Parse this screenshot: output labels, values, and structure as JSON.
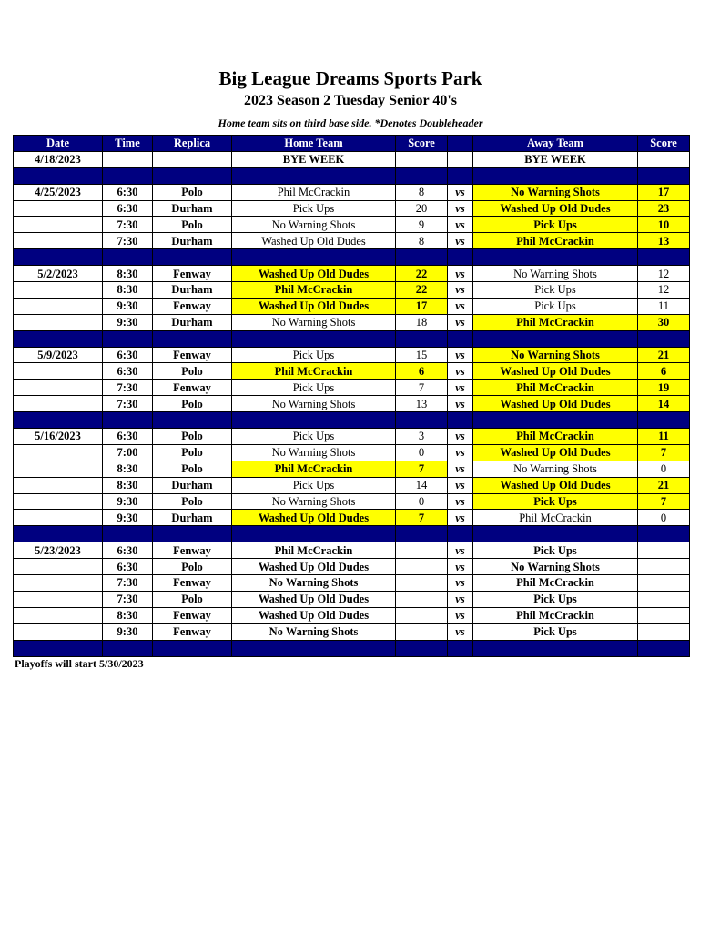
{
  "title": "Big League Dreams Sports Park",
  "subtitle": "2023 Season 2 Tuesday Senior 40's",
  "note": "Home team sits on third base side.  *Denotes Doubleheader",
  "colors": {
    "header": "#000080",
    "winner_highlight": "#ffff00"
  },
  "columns": [
    "Date",
    "Time",
    "Replica",
    "Home Team",
    "Score",
    "",
    "Away Team",
    "Score"
  ],
  "vs_label": "vs",
  "rows": [
    {
      "date": "4/18/2023",
      "time": "",
      "replica": "",
      "home": "BYE WEEK",
      "hs": "",
      "away": "BYE WEEK",
      "as": "",
      "bye": true
    },
    {
      "sep": true
    },
    {
      "date": "4/25/2023",
      "time": "6:30",
      "replica": "Polo",
      "home": "Phil McCrackin",
      "hs": "8",
      "away": "No Warning Shots",
      "as": "17",
      "win": "away"
    },
    {
      "date": "",
      "time": "6:30",
      "replica": "Durham",
      "home": "Pick Ups",
      "hs": "20",
      "away": "Washed Up Old Dudes",
      "as": "23",
      "win": "away"
    },
    {
      "date": "",
      "time": "7:30",
      "replica": "Polo",
      "home": "No Warning Shots",
      "hs": "9",
      "away": "Pick Ups",
      "as": "10",
      "win": "away"
    },
    {
      "date": "",
      "time": "7:30",
      "replica": "Durham",
      "home": "Washed Up Old Dudes",
      "hs": "8",
      "away": "Phil McCrackin",
      "as": "13",
      "win": "away"
    },
    {
      "sep": true
    },
    {
      "date": "5/2/2023",
      "time": "8:30",
      "replica": "Fenway",
      "home": "Washed Up Old Dudes",
      "hs": "22",
      "away": "No Warning Shots",
      "as": "12",
      "win": "home"
    },
    {
      "date": "",
      "time": "8:30",
      "replica": "Durham",
      "home": "Phil McCrackin",
      "hs": "22",
      "away": "Pick Ups",
      "as": "12",
      "win": "home"
    },
    {
      "date": "",
      "time": "9:30",
      "replica": "Fenway",
      "home": "Washed Up Old Dudes",
      "hs": "17",
      "away": "Pick Ups",
      "as": "11",
      "win": "home"
    },
    {
      "date": "",
      "time": "9:30",
      "replica": "Durham",
      "home": "No Warning Shots",
      "hs": "18",
      "away": "Phil McCrackin",
      "as": "30",
      "win": "away"
    },
    {
      "sep": true
    },
    {
      "date": "5/9/2023",
      "time": "6:30",
      "replica": "Fenway",
      "home": "Pick Ups",
      "hs": "15",
      "away": "No Warning Shots",
      "as": "21",
      "win": "away"
    },
    {
      "date": "",
      "time": "6:30",
      "replica": "Polo",
      "home": "Phil McCrackin",
      "hs": "6",
      "away": "Washed Up Old Dudes",
      "as": "6",
      "win": "both"
    },
    {
      "date": "",
      "time": "7:30",
      "replica": "Fenway",
      "home": "Pick Ups",
      "hs": "7",
      "away": "Phil McCrackin",
      "as": "19",
      "win": "away"
    },
    {
      "date": "",
      "time": "7:30",
      "replica": "Polo",
      "home": "No Warning Shots",
      "hs": "13",
      "away": "Washed Up Old Dudes",
      "as": "14",
      "win": "away"
    },
    {
      "sep": true
    },
    {
      "date": "5/16/2023",
      "time": "6:30",
      "replica": "Polo",
      "home": "Pick Ups",
      "hs": "3",
      "away": "Phil McCrackin",
      "as": "11",
      "win": "away"
    },
    {
      "date": "",
      "time": "7:00",
      "replica": "Polo",
      "home": "No Warning Shots",
      "hs": "0",
      "away": "Washed Up Old Dudes",
      "as": "7",
      "win": "away"
    },
    {
      "date": "",
      "time": "8:30",
      "replica": "Polo",
      "home": "Phil McCrackin",
      "hs": "7",
      "away": "No Warning Shots",
      "as": "0",
      "win": "home"
    },
    {
      "date": "",
      "time": "8:30",
      "replica": "Durham",
      "home": "Pick Ups",
      "hs": "14",
      "away": "Washed Up Old Dudes",
      "as": "21",
      "win": "away"
    },
    {
      "date": "",
      "time": "9:30",
      "replica": "Polo",
      "home": "No Warning Shots",
      "hs": "0",
      "away": "Pick Ups",
      "as": "7",
      "win": "away"
    },
    {
      "date": "",
      "time": "9:30",
      "replica": "Durham",
      "home": "Washed Up Old Dudes",
      "hs": "7",
      "away": "Phil McCrackin",
      "as": "0",
      "win": "home"
    },
    {
      "sep": true
    },
    {
      "date": "5/23/2023",
      "time": "6:30",
      "replica": "Fenway",
      "home": "Phil McCrackin",
      "hs": "",
      "away": "Pick Ups",
      "as": "",
      "bye": true
    },
    {
      "date": "",
      "time": "6:30",
      "replica": "Polo",
      "home": "Washed Up Old Dudes",
      "hs": "",
      "away": "No Warning Shots",
      "as": "",
      "bye": true
    },
    {
      "date": "",
      "time": "7:30",
      "replica": "Fenway",
      "home": "No Warning Shots",
      "hs": "",
      "away": "Phil McCrackin",
      "as": "",
      "bye": true
    },
    {
      "date": "",
      "time": "7:30",
      "replica": "Polo",
      "home": "Washed Up Old Dudes",
      "hs": "",
      "away": "Pick Ups",
      "as": "",
      "bye": true
    },
    {
      "date": "",
      "time": "8:30",
      "replica": "Fenway",
      "home": "Washed Up Old Dudes",
      "hs": "",
      "away": "Phil McCrackin",
      "as": "",
      "bye": true
    },
    {
      "date": "",
      "time": "9:30",
      "replica": "Fenway",
      "home": "No Warning Shots",
      "hs": "",
      "away": "Pick Ups",
      "as": "",
      "bye": true
    },
    {
      "sep": true
    }
  ],
  "footer": "Playoffs will start 5/30/2023"
}
